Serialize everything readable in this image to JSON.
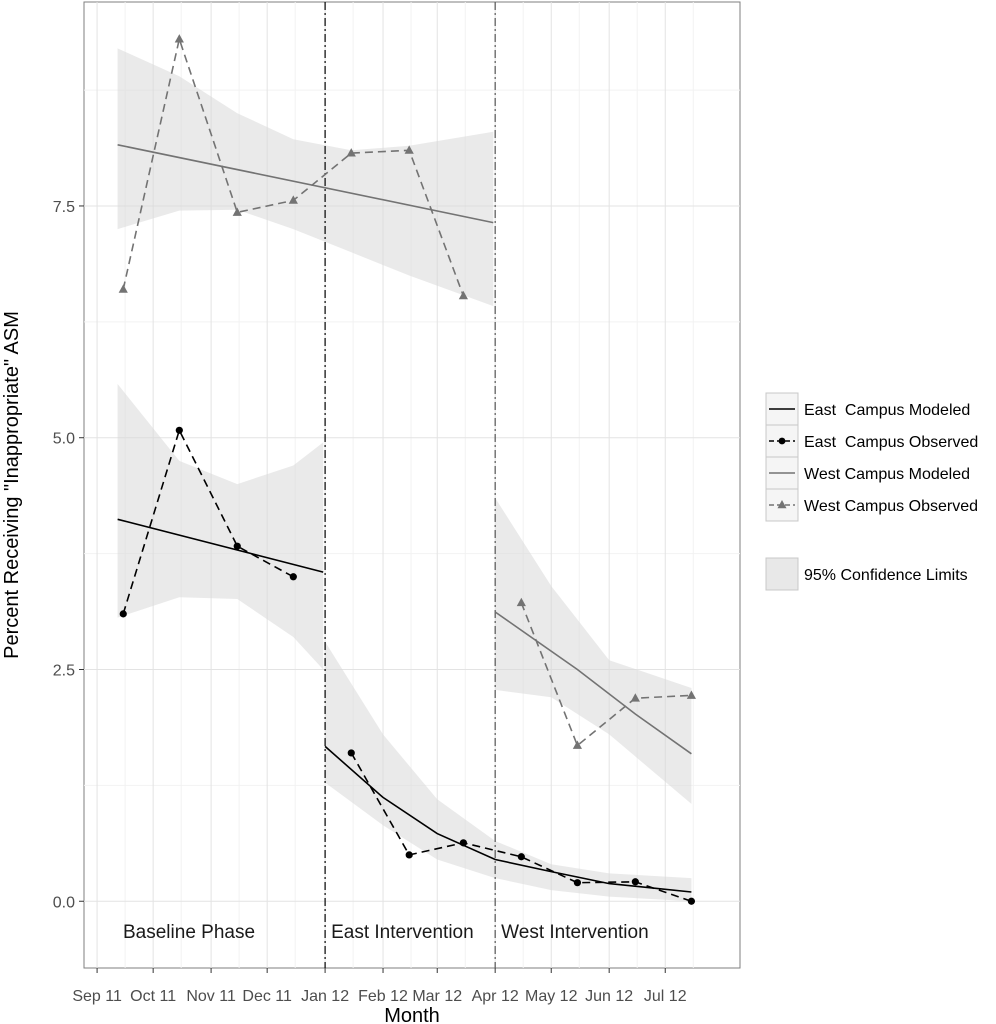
{
  "chart_data": {
    "type": "line",
    "title": "",
    "xlabel": "Month",
    "ylabel": "Percent Receiving \"Inappropriate\" ASM",
    "x_ticks": [
      "Sep 11",
      "Oct 11",
      "Nov 11",
      "Dec 11",
      "Jan 12",
      "Feb 12",
      "Mar 12",
      "Apr 12",
      "May 12",
      "Jun 12",
      "Jul 12"
    ],
    "y_ticks": [
      "0.0",
      "2.5",
      "5.0",
      "7.5"
    ],
    "xlim": [
      "2011-08-25",
      "2012-08-10"
    ],
    "ylim": [
      -0.72,
      9.7
    ],
    "grid": true,
    "phase_dividers": [
      "2012-01-01",
      "2012-04-01"
    ],
    "phases": [
      "Baseline Phase",
      "East Intervention",
      "West Intervention"
    ],
    "series": [
      {
        "name": "East  Campus Observed",
        "color": "#000000",
        "marker": "circle",
        "dash": true,
        "segments": [
          [
            [
              "2011-09-15",
              3.1
            ],
            [
              "2011-10-15",
              5.08
            ],
            [
              "2011-11-15",
              3.83
            ],
            [
              "2011-12-15",
              3.5
            ]
          ],
          [
            [
              "2012-01-15",
              1.6
            ],
            [
              "2012-02-15",
              0.5
            ],
            [
              "2012-03-15",
              0.63
            ],
            [
              "2012-04-15",
              0.48
            ],
            [
              "2012-05-15",
              0.2
            ],
            [
              "2012-06-15",
              0.21
            ],
            [
              "2012-07-15",
              0.0
            ]
          ]
        ]
      },
      {
        "name": "West Campus Observed",
        "color": "#737373",
        "marker": "triangle",
        "dash": true,
        "segments": [
          [
            [
              "2011-09-15",
              6.6
            ],
            [
              "2011-10-15",
              9.3
            ],
            [
              "2011-11-15",
              7.43
            ],
            [
              "2011-12-15",
              7.56
            ],
            [
              "2012-01-15",
              8.07
            ],
            [
              "2012-02-15",
              8.1
            ],
            [
              "2012-03-15",
              6.53
            ]
          ],
          [
            [
              "2012-04-15",
              3.22
            ],
            [
              "2012-05-15",
              1.68
            ],
            [
              "2012-06-15",
              2.19
            ],
            [
              "2012-07-15",
              2.22
            ]
          ]
        ]
      },
      {
        "name": "East  Campus Modeled",
        "color": "#000000",
        "dash": false,
        "segments": [
          [
            [
              "2011-09-12",
              4.12
            ],
            [
              "2011-12-31",
              3.55
            ]
          ],
          [
            [
              "2012-01-01",
              1.67
            ],
            [
              "2012-02-01",
              1.12
            ],
            [
              "2012-03-01",
              0.73
            ],
            [
              "2012-04-01",
              0.45
            ],
            [
              "2012-05-01",
              0.32
            ],
            [
              "2012-06-01",
              0.19
            ],
            [
              "2012-07-15",
              0.1
            ]
          ]
        ],
        "ci": [
          [
            [
              "2011-09-12",
              5.58,
              3.06
            ],
            [
              "2011-10-15",
              4.75,
              3.28
            ],
            [
              "2011-11-15",
              4.5,
              3.26
            ],
            [
              "2011-12-15",
              4.7,
              2.85
            ],
            [
              "2011-12-31",
              4.95,
              2.5
            ]
          ],
          [
            [
              "2012-01-01",
              2.8,
              1.28
            ],
            [
              "2012-02-01",
              1.8,
              0.82
            ],
            [
              "2012-03-01",
              1.1,
              0.45
            ],
            [
              "2012-04-01",
              0.65,
              0.25
            ],
            [
              "2012-05-01",
              0.4,
              0.12
            ],
            [
              "2012-06-01",
              0.3,
              0.05
            ],
            [
              "2012-07-15",
              0.25,
              0.0
            ]
          ]
        ]
      },
      {
        "name": "West Campus Modeled",
        "color": "#737373",
        "dash": false,
        "segments": [
          [
            [
              "2011-09-12",
              8.16
            ],
            [
              "2012-03-31",
              7.32
            ]
          ],
          [
            [
              "2012-04-01",
              3.12
            ],
            [
              "2012-05-15",
              2.5
            ],
            [
              "2012-06-15",
              2.02
            ],
            [
              "2012-07-15",
              1.59
            ]
          ]
        ],
        "ci": [
          [
            [
              "2011-09-12",
              9.2,
              7.25
            ],
            [
              "2011-10-15",
              8.9,
              7.45
            ],
            [
              "2011-11-15",
              8.5,
              7.46
            ],
            [
              "2011-12-15",
              8.22,
              7.25
            ],
            [
              "2012-01-15",
              8.1,
              7.0
            ],
            [
              "2012-02-15",
              8.15,
              6.75
            ],
            [
              "2012-03-31",
              8.3,
              6.42
            ]
          ],
          [
            [
              "2012-04-01",
              4.35,
              2.28
            ],
            [
              "2012-05-01",
              3.4,
              2.2
            ],
            [
              "2012-06-01",
              2.6,
              1.8
            ],
            [
              "2012-07-15",
              2.3,
              1.05
            ]
          ]
        ]
      }
    ],
    "legend": {
      "position": "right",
      "entries": [
        "East  Campus Modeled",
        "East  Campus Observed",
        "West Campus Modeled",
        "West Campus Observed"
      ],
      "ci_label": "95% Confidence Limits"
    }
  }
}
